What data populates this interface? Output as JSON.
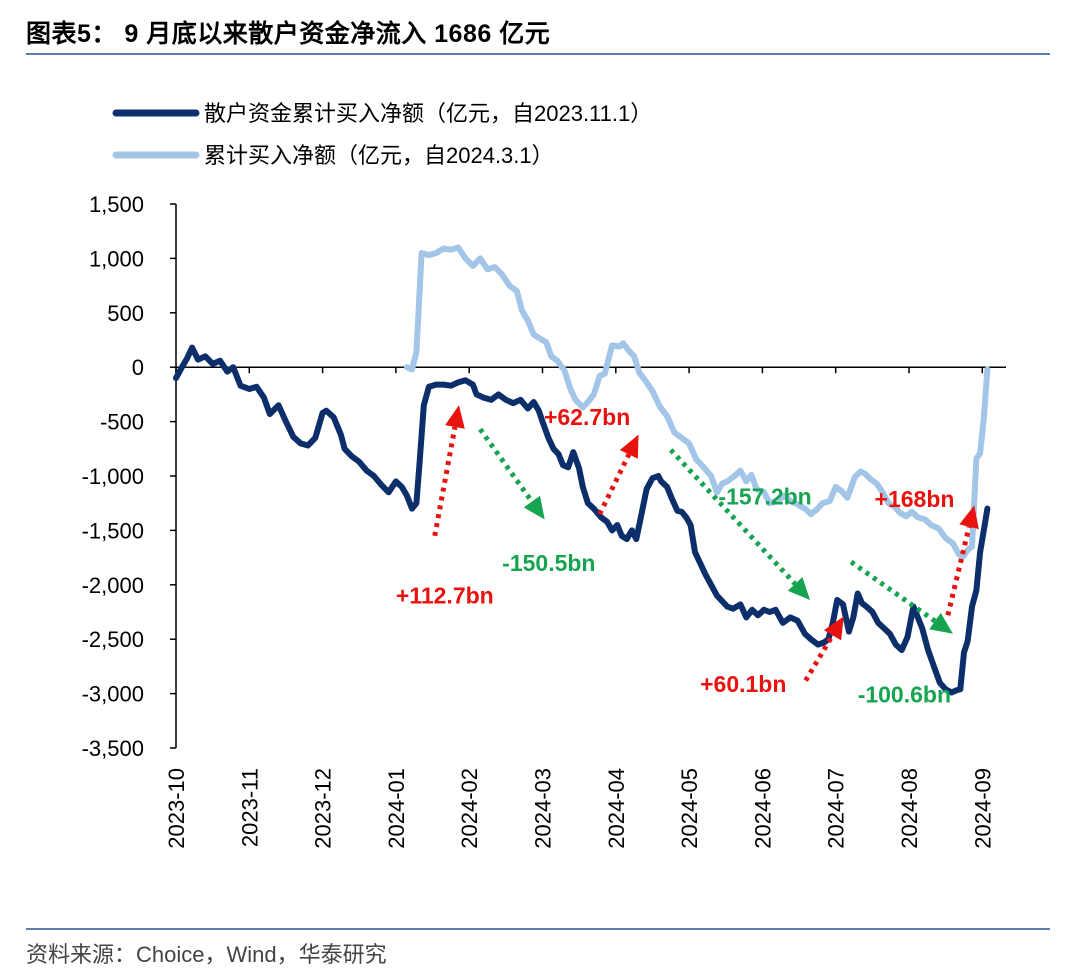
{
  "header": {
    "title": "图表5： 9 月底以来散户资金净流入 1686 亿元"
  },
  "footer": {
    "source": "资料来源：Choice，Wind，华泰研究"
  },
  "colors": {
    "series_dark": "#0c2f6b",
    "series_light": "#a2c5e8",
    "up_arrow": "#e8120f",
    "down_arrow": "#16a450",
    "rule": "#5b7faa"
  },
  "chart_data": {
    "type": "line",
    "title": "9 月底以来散户资金净流入 1686 亿元",
    "xlabel": "",
    "ylabel": "",
    "ylim": [
      -3500,
      1500
    ],
    "yticks": [
      1500,
      1000,
      500,
      0,
      -500,
      -1000,
      -1500,
      -2000,
      -2500,
      -3000,
      -3500
    ],
    "ytick_labels": [
      "1,500",
      "1,000",
      "500",
      "0",
      "-500",
      "-1,000",
      "-1,500",
      "-2,000",
      "-2,500",
      "-3,000",
      "-3,500"
    ],
    "xticks": [
      0,
      1,
      2,
      3,
      4,
      5,
      6,
      7,
      8,
      9,
      10,
      11
    ],
    "xtick_labels": [
      "2023-10",
      "2023-11",
      "2023-12",
      "2024-01",
      "2024-02",
      "2024-03",
      "2024-04",
      "2024-05",
      "2024-06",
      "2024-07",
      "2024-08",
      "2024-09"
    ],
    "legend_position": "top-left",
    "series": [
      {
        "name": "散户资金累计买入净额（亿元，自2023.11.1）",
        "color": "#0c2f6b",
        "points": [
          [
            0.0,
            -100
          ],
          [
            0.08,
            0
          ],
          [
            0.15,
            80
          ],
          [
            0.22,
            180
          ],
          [
            0.3,
            70
          ],
          [
            0.4,
            100
          ],
          [
            0.5,
            30
          ],
          [
            0.6,
            60
          ],
          [
            0.7,
            -40
          ],
          [
            0.78,
            0
          ],
          [
            0.88,
            -170
          ],
          [
            1.0,
            -200
          ],
          [
            1.1,
            -180
          ],
          [
            1.2,
            -280
          ],
          [
            1.28,
            -430
          ],
          [
            1.4,
            -350
          ],
          [
            1.5,
            -500
          ],
          [
            1.6,
            -640
          ],
          [
            1.7,
            -700
          ],
          [
            1.8,
            -720
          ],
          [
            1.9,
            -650
          ],
          [
            2.0,
            -420
          ],
          [
            2.05,
            -400
          ],
          [
            2.15,
            -460
          ],
          [
            2.25,
            -620
          ],
          [
            2.3,
            -750
          ],
          [
            2.4,
            -820
          ],
          [
            2.5,
            -870
          ],
          [
            2.6,
            -950
          ],
          [
            2.7,
            -1000
          ],
          [
            2.8,
            -1080
          ],
          [
            2.9,
            -1150
          ],
          [
            3.0,
            -1050
          ],
          [
            3.08,
            -1100
          ],
          [
            3.15,
            -1180
          ],
          [
            3.22,
            -1300
          ],
          [
            3.28,
            -1250
          ],
          [
            3.32,
            -900
          ],
          [
            3.38,
            -350
          ],
          [
            3.45,
            -180
          ],
          [
            3.55,
            -160
          ],
          [
            3.65,
            -160
          ],
          [
            3.75,
            -170
          ],
          [
            3.85,
            -140
          ],
          [
            3.95,
            -120
          ],
          [
            4.05,
            -160
          ],
          [
            4.1,
            -250
          ],
          [
            4.2,
            -280
          ],
          [
            4.3,
            -300
          ],
          [
            4.4,
            -250
          ],
          [
            4.5,
            -300
          ],
          [
            4.6,
            -330
          ],
          [
            4.7,
            -300
          ],
          [
            4.8,
            -380
          ],
          [
            4.88,
            -320
          ],
          [
            4.95,
            -400
          ],
          [
            5.0,
            -500
          ],
          [
            5.08,
            -650
          ],
          [
            5.15,
            -750
          ],
          [
            5.22,
            -800
          ],
          [
            5.28,
            -900
          ],
          [
            5.35,
            -920
          ],
          [
            5.42,
            -780
          ],
          [
            5.5,
            -930
          ],
          [
            5.55,
            -1100
          ],
          [
            5.62,
            -1250
          ],
          [
            5.7,
            -1300
          ],
          [
            5.8,
            -1380
          ],
          [
            5.88,
            -1420
          ],
          [
            5.95,
            -1500
          ],
          [
            6.02,
            -1450
          ],
          [
            6.08,
            -1550
          ],
          [
            6.15,
            -1580
          ],
          [
            6.22,
            -1500
          ],
          [
            6.28,
            -1580
          ],
          [
            6.35,
            -1350
          ],
          [
            6.42,
            -1120
          ],
          [
            6.5,
            -1020
          ],
          [
            6.58,
            -1000
          ],
          [
            6.62,
            -1050
          ],
          [
            6.7,
            -1100
          ],
          [
            6.76,
            -1200
          ],
          [
            6.84,
            -1320
          ],
          [
            6.9,
            -1330
          ],
          [
            6.96,
            -1380
          ],
          [
            7.02,
            -1450
          ],
          [
            7.08,
            -1700
          ],
          [
            7.15,
            -1800
          ],
          [
            7.22,
            -1900
          ],
          [
            7.3,
            -2000
          ],
          [
            7.38,
            -2100
          ],
          [
            7.45,
            -2150
          ],
          [
            7.52,
            -2200
          ],
          [
            7.6,
            -2220
          ],
          [
            7.7,
            -2180
          ],
          [
            7.78,
            -2300
          ],
          [
            7.86,
            -2230
          ],
          [
            7.94,
            -2280
          ],
          [
            8.02,
            -2230
          ],
          [
            8.1,
            -2250
          ],
          [
            8.18,
            -2230
          ],
          [
            8.28,
            -2350
          ],
          [
            8.38,
            -2300
          ],
          [
            8.48,
            -2330
          ],
          [
            8.58,
            -2450
          ],
          [
            8.66,
            -2500
          ],
          [
            8.76,
            -2550
          ],
          [
            8.84,
            -2530
          ],
          [
            8.9,
            -2500
          ],
          [
            8.96,
            -2350
          ],
          [
            9.02,
            -2140
          ],
          [
            9.1,
            -2180
          ],
          [
            9.18,
            -2430
          ],
          [
            9.24,
            -2300
          ],
          [
            9.3,
            -2080
          ],
          [
            9.36,
            -2170
          ],
          [
            9.42,
            -2200
          ],
          [
            9.5,
            -2250
          ],
          [
            9.58,
            -2350
          ],
          [
            9.66,
            -2400
          ],
          [
            9.74,
            -2450
          ],
          [
            9.82,
            -2550
          ],
          [
            9.9,
            -2600
          ],
          [
            9.98,
            -2480
          ],
          [
            10.06,
            -2200
          ],
          [
            10.12,
            -2300
          ],
          [
            10.18,
            -2400
          ],
          [
            10.26,
            -2600
          ],
          [
            10.34,
            -2750
          ],
          [
            10.42,
            -2900
          ],
          [
            10.5,
            -2960
          ],
          [
            10.58,
            -2990
          ],
          [
            10.65,
            -2970
          ],
          [
            10.7,
            -2960
          ],
          [
            10.75,
            -2620
          ],
          [
            10.8,
            -2520
          ],
          [
            10.86,
            -2200
          ],
          [
            10.92,
            -2050
          ],
          [
            10.97,
            -1700
          ],
          [
            11.02,
            -1500
          ],
          [
            11.07,
            -1300
          ]
        ]
      },
      {
        "name": "累计买入净额（亿元，自2024.3.1）",
        "color": "#a2c5e8",
        "points": [
          [
            3.15,
            0
          ],
          [
            3.22,
            -20
          ],
          [
            3.28,
            140
          ],
          [
            3.35,
            1050
          ],
          [
            3.45,
            1030
          ],
          [
            3.55,
            1050
          ],
          [
            3.65,
            1090
          ],
          [
            3.75,
            1080
          ],
          [
            3.85,
            1100
          ],
          [
            3.95,
            1000
          ],
          [
            4.05,
            930
          ],
          [
            4.15,
            1000
          ],
          [
            4.25,
            900
          ],
          [
            4.35,
            920
          ],
          [
            4.45,
            850
          ],
          [
            4.55,
            750
          ],
          [
            4.65,
            700
          ],
          [
            4.72,
            520
          ],
          [
            4.8,
            430
          ],
          [
            4.88,
            300
          ],
          [
            4.95,
            270
          ],
          [
            5.05,
            230
          ],
          [
            5.12,
            100
          ],
          [
            5.2,
            60
          ],
          [
            5.3,
            -30
          ],
          [
            5.38,
            -200
          ],
          [
            5.45,
            -300
          ],
          [
            5.55,
            -370
          ],
          [
            5.62,
            -320
          ],
          [
            5.7,
            -250
          ],
          [
            5.78,
            -80
          ],
          [
            5.85,
            -60
          ],
          [
            5.95,
            200
          ],
          [
            6.05,
            190
          ],
          [
            6.1,
            220
          ],
          [
            6.18,
            150
          ],
          [
            6.25,
            100
          ],
          [
            6.32,
            -50
          ],
          [
            6.4,
            -120
          ],
          [
            6.5,
            -220
          ],
          [
            6.6,
            -360
          ],
          [
            6.7,
            -450
          ],
          [
            6.8,
            -600
          ],
          [
            6.9,
            -650
          ],
          [
            7.0,
            -700
          ],
          [
            7.1,
            -850
          ],
          [
            7.2,
            -920
          ],
          [
            7.3,
            -1000
          ],
          [
            7.38,
            -1150
          ],
          [
            7.45,
            -1070
          ],
          [
            7.52,
            -1050
          ],
          [
            7.6,
            -1010
          ],
          [
            7.7,
            -950
          ],
          [
            7.78,
            -1050
          ],
          [
            7.85,
            -990
          ],
          [
            7.92,
            -1120
          ],
          [
            8.02,
            -1150
          ],
          [
            8.1,
            -1250
          ],
          [
            8.2,
            -1230
          ],
          [
            8.3,
            -1180
          ],
          [
            8.38,
            -1230
          ],
          [
            8.48,
            -1260
          ],
          [
            8.58,
            -1300
          ],
          [
            8.66,
            -1350
          ],
          [
            8.74,
            -1310
          ],
          [
            8.82,
            -1250
          ],
          [
            8.92,
            -1230
          ],
          [
            9.0,
            -1100
          ],
          [
            9.08,
            -1140
          ],
          [
            9.16,
            -1200
          ],
          [
            9.26,
            -1010
          ],
          [
            9.34,
            -960
          ],
          [
            9.4,
            -980
          ],
          [
            9.48,
            -1030
          ],
          [
            9.56,
            -1070
          ],
          [
            9.64,
            -1150
          ],
          [
            9.72,
            -1250
          ],
          [
            9.8,
            -1280
          ],
          [
            9.88,
            -1340
          ],
          [
            9.96,
            -1370
          ],
          [
            10.04,
            -1330
          ],
          [
            10.12,
            -1380
          ],
          [
            10.22,
            -1400
          ],
          [
            10.3,
            -1450
          ],
          [
            10.4,
            -1480
          ],
          [
            10.5,
            -1570
          ],
          [
            10.6,
            -1620
          ],
          [
            10.68,
            -1720
          ],
          [
            10.74,
            -1740
          ],
          [
            10.8,
            -1680
          ],
          [
            10.86,
            -1650
          ],
          [
            10.92,
            -840
          ],
          [
            10.97,
            -790
          ],
          [
            11.02,
            -470
          ],
          [
            11.07,
            -20
          ]
        ]
      }
    ],
    "annotations": [
      {
        "label": "+112.7bn",
        "direction": "up",
        "arrow_from": [
          3.53,
          -1550
        ],
        "arrow_to": [
          3.86,
          -350
        ],
        "text_at": [
          3.0,
          -2100
        ]
      },
      {
        "label": "-150.5bn",
        "direction": "down",
        "arrow_from": [
          4.15,
          -570
        ],
        "arrow_to": [
          5.03,
          -1400
        ],
        "text_at": [
          4.45,
          -1800
        ]
      },
      {
        "label": "+62.7bn",
        "direction": "up",
        "arrow_from": [
          5.78,
          -1350
        ],
        "arrow_to": [
          6.31,
          -620
        ],
        "text_at": [
          5.02,
          -460
        ]
      },
      {
        "label": "-157.2bn",
        "direction": "down",
        "arrow_from": [
          6.75,
          -760
        ],
        "arrow_to": [
          8.65,
          -2140
        ],
        "text_at": [
          7.4,
          -1190
        ]
      },
      {
        "label": "+60.1bn",
        "direction": "up",
        "arrow_from": [
          8.59,
          -2880
        ],
        "arrow_to": [
          9.11,
          -2290
        ],
        "text_at": [
          7.15,
          -2910
        ]
      },
      {
        "label": "-100.6bn",
        "direction": "down",
        "arrow_from": [
          9.21,
          -1790
        ],
        "arrow_to": [
          10.6,
          -2450
        ],
        "text_at": [
          9.3,
          -3010
        ]
      },
      {
        "label": "+168bn",
        "direction": "up",
        "arrow_from": [
          10.53,
          -2280
        ],
        "arrow_to": [
          10.89,
          -1270
        ],
        "text_at": [
          9.53,
          -1210
        ]
      }
    ]
  },
  "legend": [
    {
      "label": "散户资金累计买入净额（亿元，自2023.11.1）"
    },
    {
      "label": "累计买入净额（亿元，自2024.3.1）"
    }
  ]
}
